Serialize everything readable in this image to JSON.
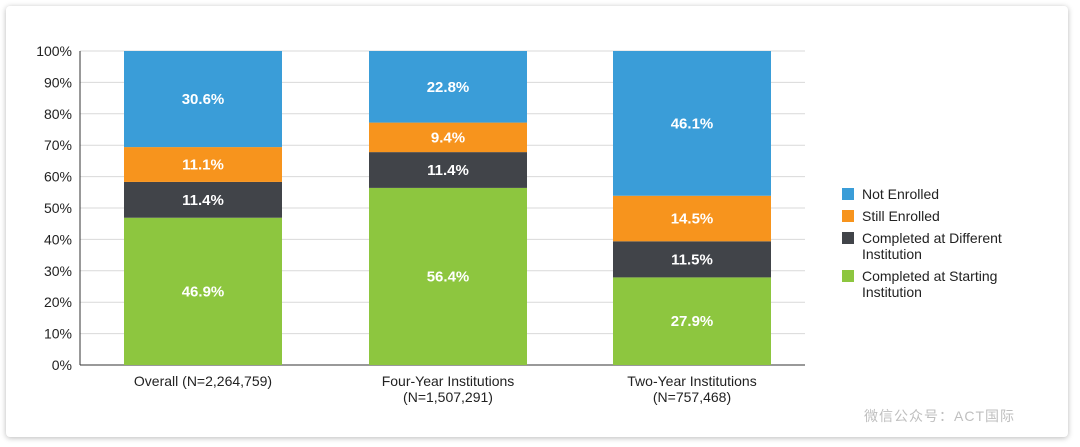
{
  "chart_data": {
    "type": "bar",
    "stacked": true,
    "categories": [
      [
        "Overall (N=2,264,759)"
      ],
      [
        "Four-Year Institutions",
        "(N=1,507,291)"
      ],
      [
        "Two-Year Institutions",
        "(N=757,468)"
      ]
    ],
    "series": [
      {
        "name": "Completed at Starting Institution",
        "values": [
          46.9,
          56.4,
          27.9
        ],
        "color": "#8dc63f"
      },
      {
        "name": "Completed at Different Institution",
        "values": [
          11.4,
          11.4,
          11.5
        ],
        "color": "#414449"
      },
      {
        "name": "Still Enrolled",
        "values": [
          11.1,
          9.4,
          14.5
        ],
        "color": "#f7941d"
      },
      {
        "name": "Not Enrolled",
        "values": [
          30.6,
          22.8,
          46.1
        ],
        "color": "#3a9dd8"
      }
    ],
    "yticks": [
      "0%",
      "10%",
      "20%",
      "30%",
      "40%",
      "50%",
      "60%",
      "70%",
      "80%",
      "90%",
      "100%"
    ],
    "ylim": [
      0,
      100
    ],
    "grid": true,
    "legend_position": "right"
  },
  "legend": [
    {
      "lines": [
        "Not Enrolled"
      ],
      "color": "#3a9dd8"
    },
    {
      "lines": [
        "Still Enrolled"
      ],
      "color": "#f7941d"
    },
    {
      "lines": [
        "Completed at Different",
        "Institution"
      ],
      "color": "#414449"
    },
    {
      "lines": [
        "Completed at Starting",
        "Institution"
      ],
      "color": "#8dc63f"
    }
  ],
  "watermark": "微信公众号：ACT国际"
}
